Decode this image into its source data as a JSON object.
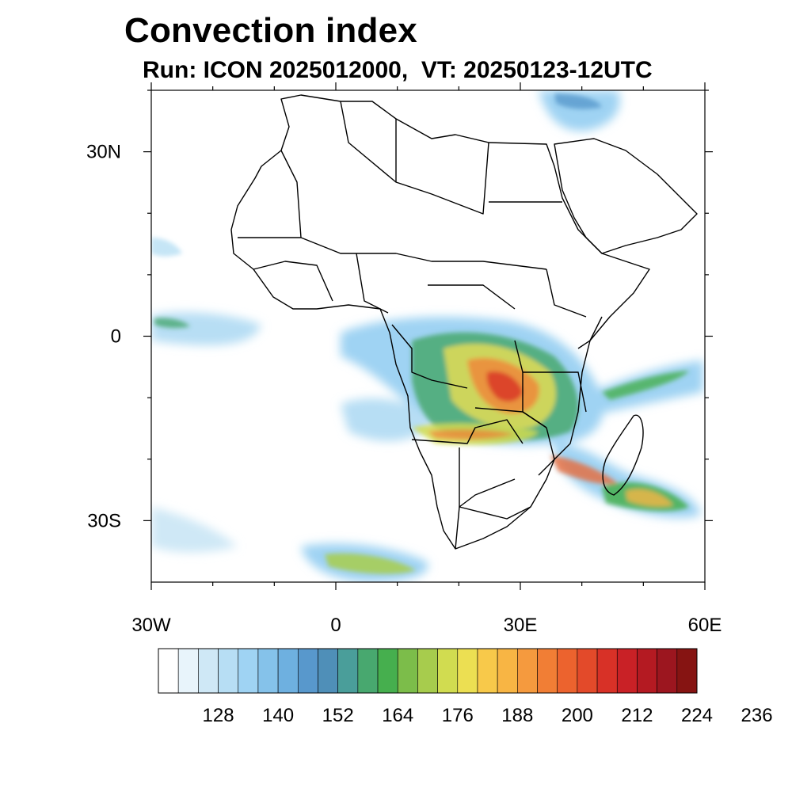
{
  "title": "Convection index",
  "subtitle": "Run: ICON 2025012000,  VT: 20250123-12UTC",
  "map": {
    "extent": {
      "lon": [
        -30,
        60
      ],
      "lat": [
        -40,
        40
      ]
    },
    "lat_labels": [
      {
        "lat": 30,
        "text": "30N"
      },
      {
        "lat": 0,
        "text": "0"
      },
      {
        "lat": -30,
        "text": "30S"
      }
    ],
    "lon_labels": [
      {
        "lon": -30,
        "text": "30W"
      },
      {
        "lon": 0,
        "text": "0"
      },
      {
        "lon": 30,
        "text": "30E"
      },
      {
        "lon": 60,
        "text": "60E"
      }
    ]
  },
  "colorbar": {
    "colors": [
      "#ffffff",
      "#e8f4fb",
      "#cfe8f6",
      "#b7def4",
      "#9fd3f3",
      "#85c2ea",
      "#6eb0e0",
      "#5898cc",
      "#4f8fb8",
      "#4a9e9a",
      "#48a86f",
      "#46af4e",
      "#7cbd4a",
      "#a7cc4d",
      "#d1dc50",
      "#ecdf52",
      "#f8c94a",
      "#f8b544",
      "#f59a3e",
      "#f17e35",
      "#ec632e",
      "#e34a2a",
      "#d83127",
      "#c92126",
      "#b41a22",
      "#9c161f",
      "#861412"
    ],
    "labels": [
      "128",
      "140",
      "152",
      "164",
      "176",
      "188",
      "200",
      "212",
      "224",
      "236"
    ]
  }
}
